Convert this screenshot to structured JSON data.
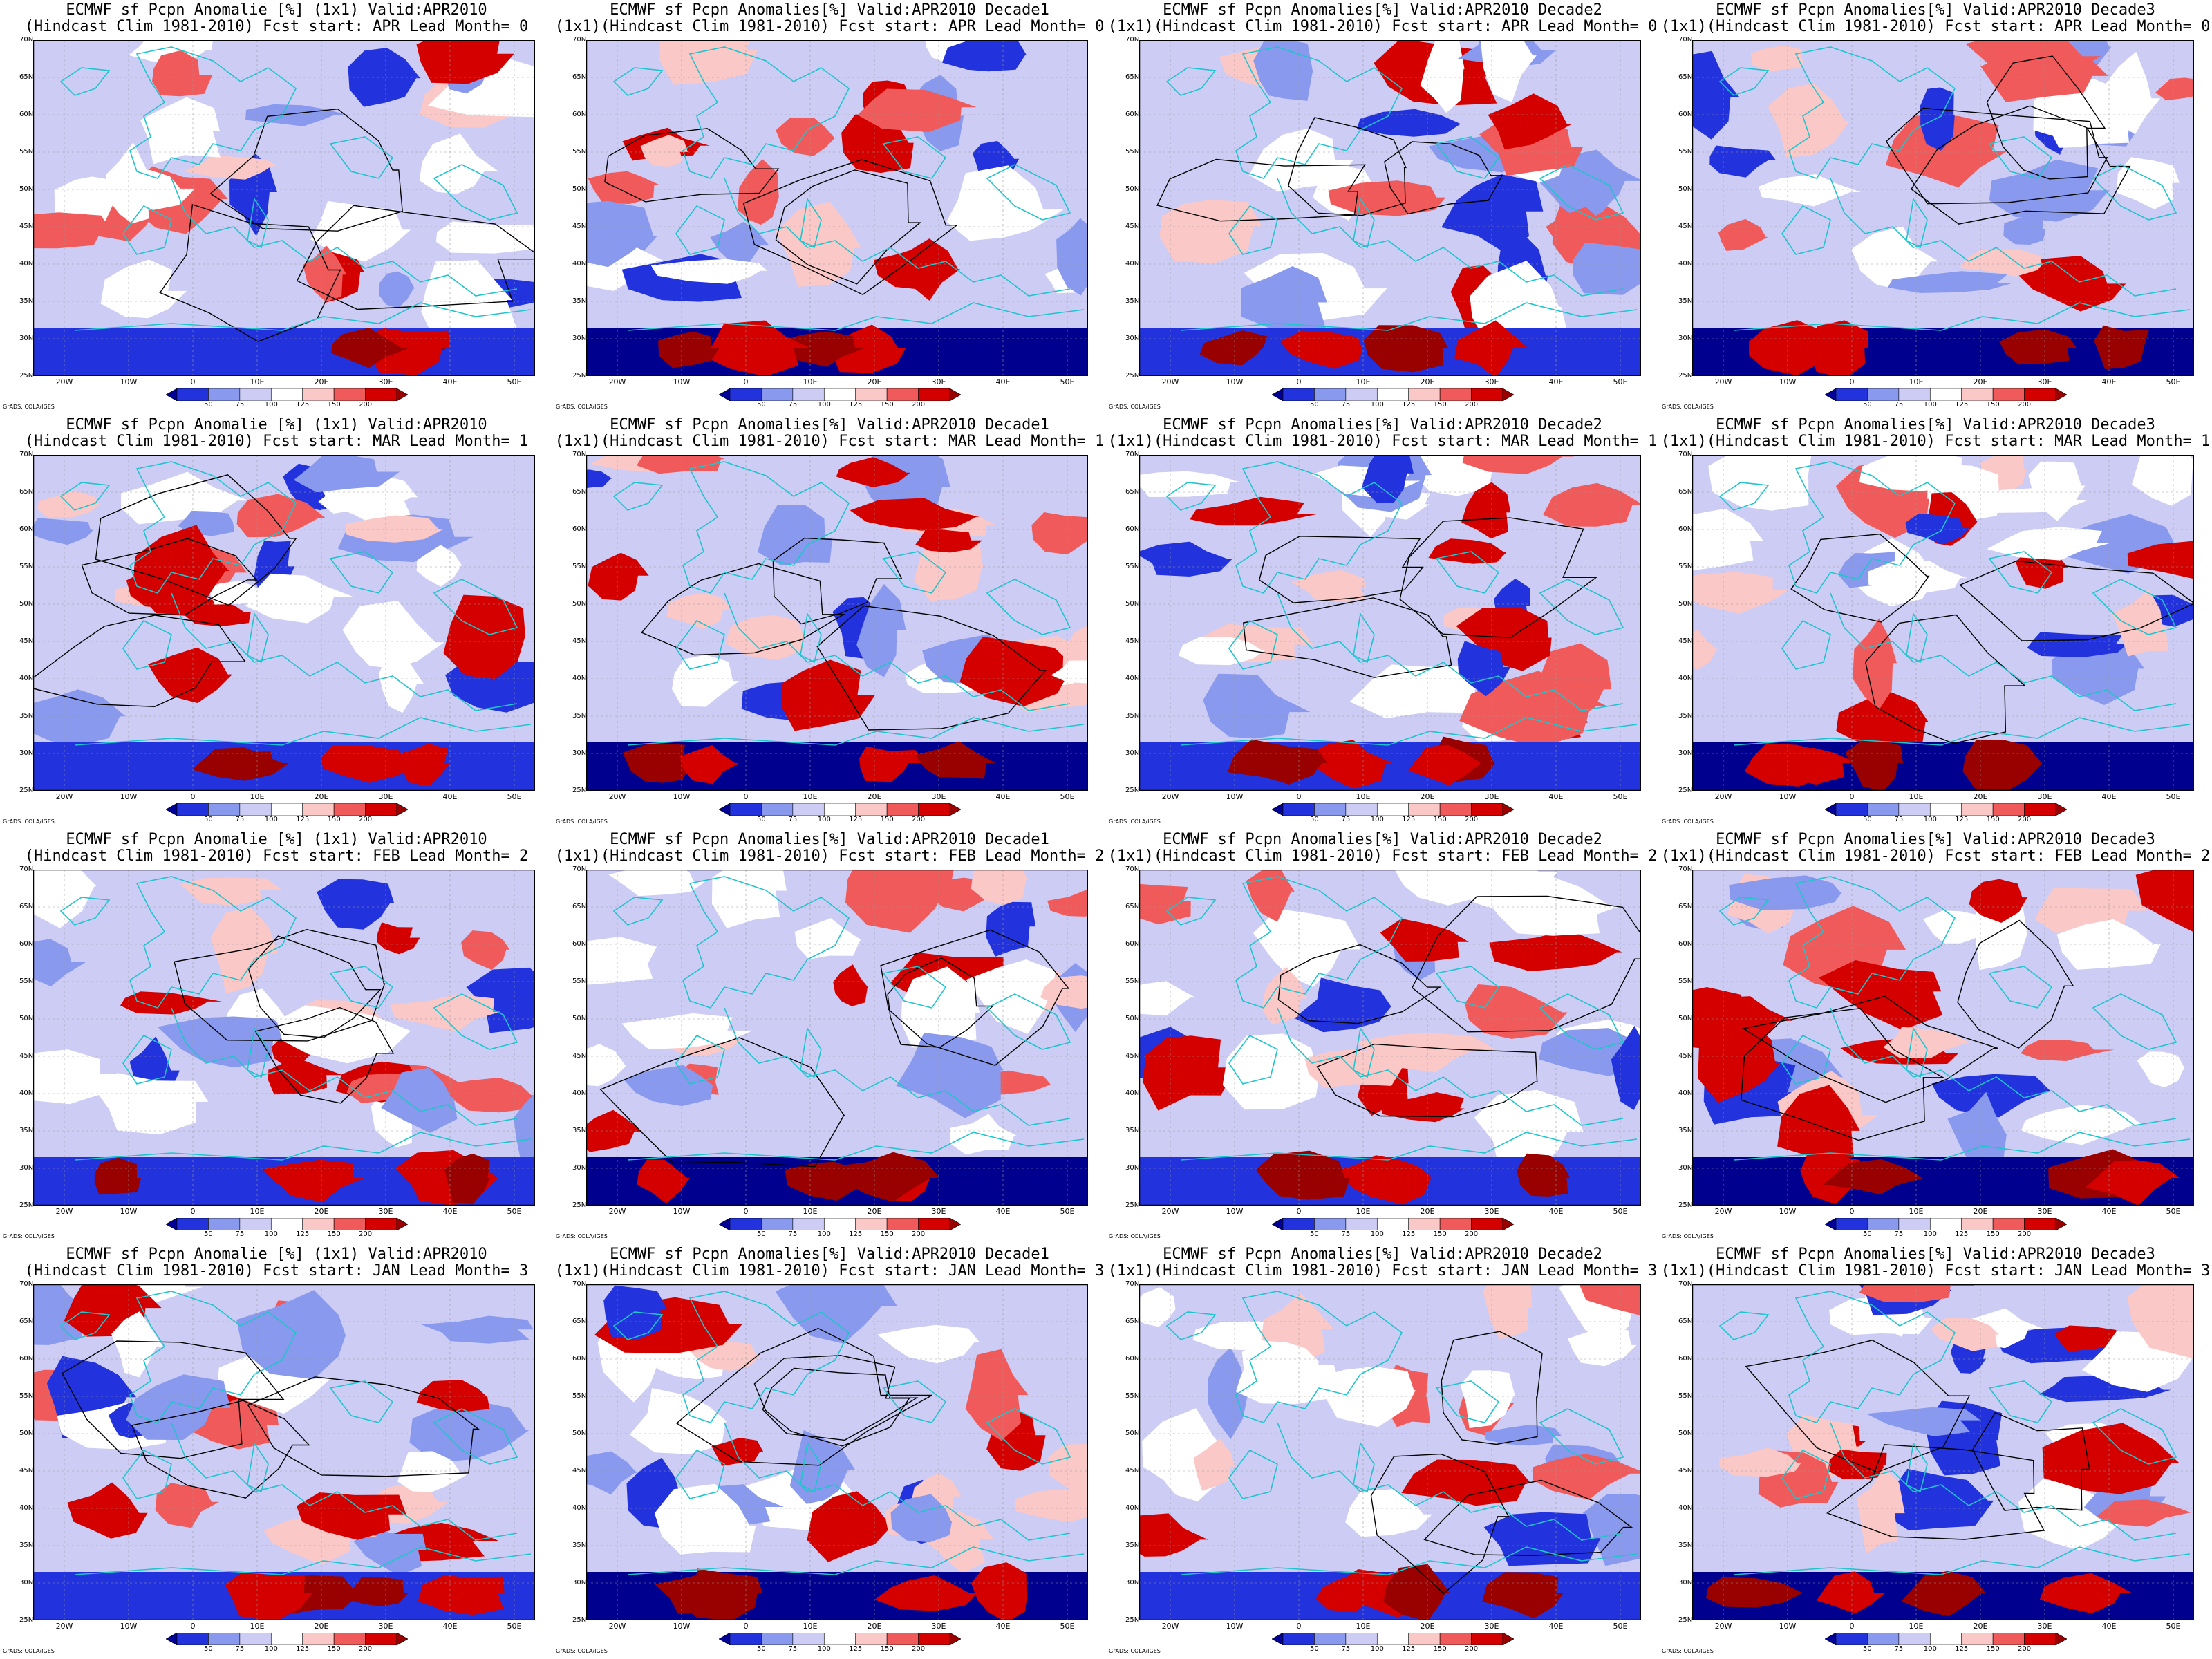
{
  "figure": {
    "credit": "GrADS: COLA/IGES",
    "colorbar_ticks": [
      "50",
      "75",
      "100",
      "125",
      "150",
      "200"
    ],
    "colorbar_colors": [
      "#000099",
      "#2233dd",
      "#8899ee",
      "#ccccf4",
      "#ffffff",
      "#fbc8c8",
      "#f05a5a",
      "#d40000",
      "#990000"
    ],
    "lat_labels": [
      "70N",
      "65N",
      "60N",
      "55N",
      "50N",
      "45N",
      "40N",
      "35N",
      "30N",
      "25N"
    ],
    "lon_labels": [
      "20W",
      "10W",
      "0",
      "10E",
      "20E",
      "30E",
      "40E",
      "50E"
    ],
    "colors": {
      "wet": "#b00000",
      "dry": "#00008f",
      "coast": "#20c4cc",
      "contour": "#000000"
    }
  },
  "panels": [
    {
      "title1": "ECMWF sf Pcpn Anomalie [%] (1x1) Valid:APR2010",
      "title2": "(Hindcast Clim 1981-2010) Fcst start: APR  Lead Month= 0"
    },
    {
      "title1": "ECMWF sf Pcpn Anomalies[%] Valid:APR2010 Decade1",
      "title2": "(1x1)(Hindcast Clim 1981-2010) Fcst start: APR  Lead Month= 0"
    },
    {
      "title1": "ECMWF sf Pcpn Anomalies[%] Valid:APR2010 Decade2",
      "title2": "(1x1)(Hindcast Clim 1981-2010) Fcst start: APR  Lead Month= 0"
    },
    {
      "title1": "ECMWF sf Pcpn Anomalies[%] Valid:APR2010 Decade3",
      "title2": "(1x1)(Hindcast Clim 1981-2010) Fcst start: APR  Lead Month= 0"
    },
    {
      "title1": "ECMWF sf Pcpn Anomalie [%] (1x1) Valid:APR2010",
      "title2": "(Hindcast Clim 1981-2010) Fcst start: MAR  Lead Month= 1"
    },
    {
      "title1": "ECMWF sf Pcpn Anomalies[%] Valid:APR2010 Decade1",
      "title2": "(1x1)(Hindcast Clim 1981-2010) Fcst start: MAR  Lead Month= 1"
    },
    {
      "title1": "ECMWF sf Pcpn Anomalies[%] Valid:APR2010 Decade2",
      "title2": "(1x1)(Hindcast Clim 1981-2010) Fcst start: MAR  Lead Month= 1"
    },
    {
      "title1": "ECMWF sf Pcpn Anomalies[%] Valid:APR2010 Decade3",
      "title2": "(1x1)(Hindcast Clim 1981-2010) Fcst start: MAR  Lead Month= 1"
    },
    {
      "title1": "ECMWF sf Pcpn Anomalie [%] (1x1) Valid:APR2010",
      "title2": "(Hindcast Clim 1981-2010) Fcst start: FEB  Lead Month= 2"
    },
    {
      "title1": "ECMWF sf Pcpn Anomalies[%] Valid:APR2010 Decade1",
      "title2": "(1x1)(Hindcast Clim 1981-2010) Fcst start: FEB  Lead Month= 2"
    },
    {
      "title1": "ECMWF sf Pcpn Anomalies[%] Valid:APR2010 Decade2",
      "title2": "(1x1)(Hindcast Clim 1981-2010) Fcst start: FEB  Lead Month= 2"
    },
    {
      "title1": "ECMWF sf Pcpn Anomalies[%] Valid:APR2010 Decade3",
      "title2": "(1x1)(Hindcast Clim 1981-2010) Fcst start: FEB  Lead Month= 2"
    },
    {
      "title1": "ECMWF sf Pcpn Anomalie [%] (1x1) Valid:APR2010",
      "title2": "(Hindcast Clim 1981-2010) Fcst start: JAN  Lead Month= 3"
    },
    {
      "title1": "ECMWF sf Pcpn Anomalies[%] Valid:APR2010 Decade1",
      "title2": "(1x1)(Hindcast Clim 1981-2010) Fcst start: JAN  Lead Month= 3"
    },
    {
      "title1": "ECMWF sf Pcpn Anomalies[%] Valid:APR2010 Decade2",
      "title2": "(1x1)(Hindcast Clim 1981-2010) Fcst start: JAN  Lead Month= 3"
    },
    {
      "title1": "ECMWF sf Pcpn Anomalies[%] Valid:APR2010 Decade3",
      "title2": "(1x1)(Hindcast Clim 1981-2010) Fcst start: JAN  Lead Month= 3"
    }
  ]
}
